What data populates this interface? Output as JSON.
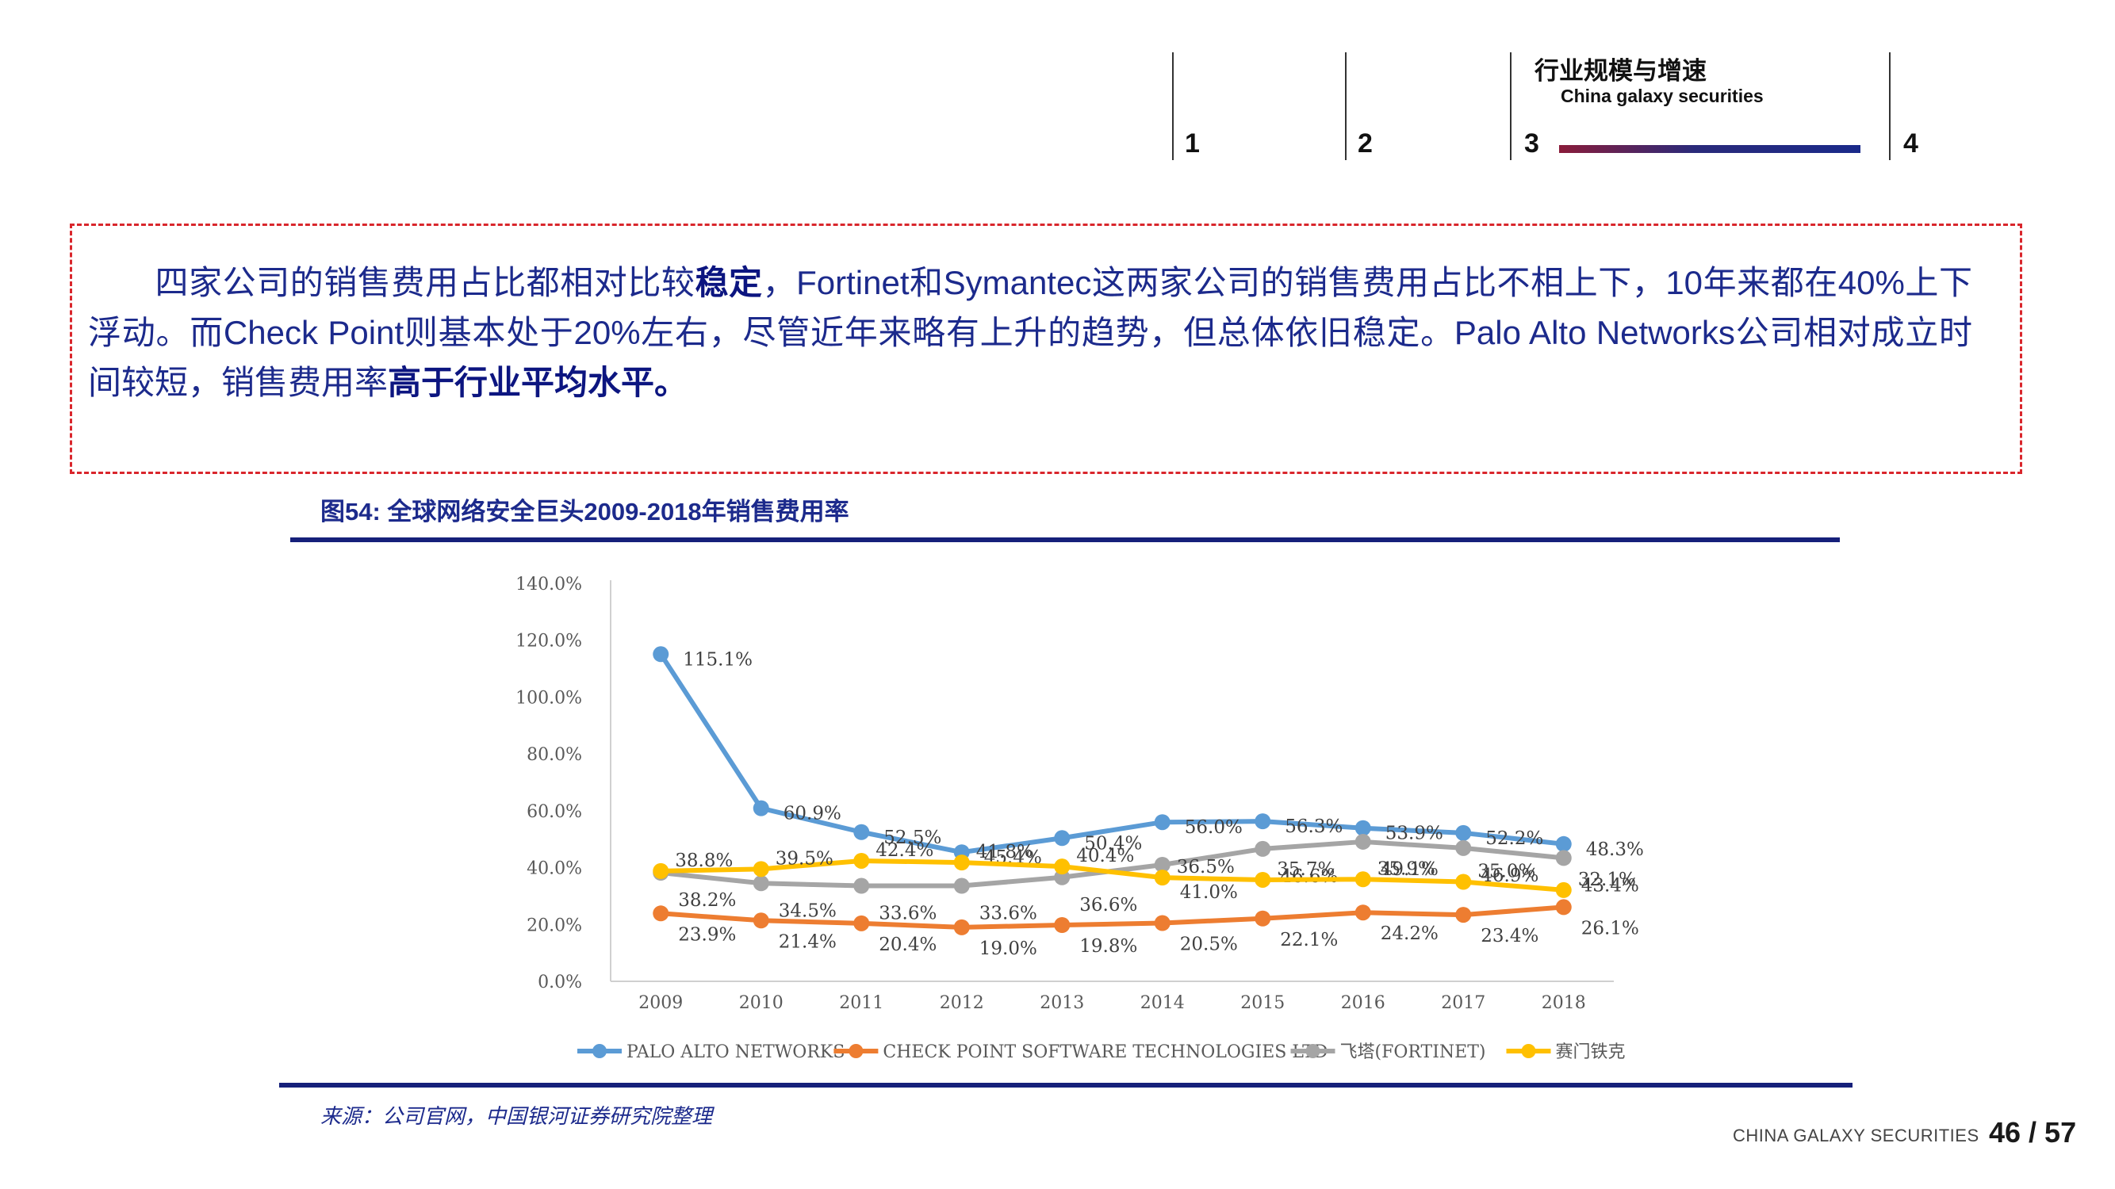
{
  "header": {
    "nav_numbers": [
      "1",
      "2",
      "3",
      "4"
    ],
    "section_title": "行业规模与增速",
    "section_subtitle": "China galaxy securities"
  },
  "summary": {
    "part1": "四家公司的销售费用占比都相对比较",
    "bold1": "稳定",
    "part2": "，Fortinet和Symantec这两家公司的销售费用占比不相上下，10年来都在40%上下浮动。而Check  Point则基本处于20%左右，尽管近年来略有上升的趋势，但总体依旧稳定。Palo  Alto  Networks公司相对成立时间较短，销售费用率",
    "bold2": "高于行业平均水平。"
  },
  "figure_caption": "图54: 全球网络安全巨头2009-2018年销售费用率",
  "source_note": "来源：公司官网，中国银河证券研究院整理",
  "footer": {
    "brand": "CHINA GALAXY SECURITIES",
    "page": "46 / 57"
  },
  "chart_data": {
    "type": "line",
    "title": "",
    "xlabel": "",
    "ylabel": "",
    "categories": [
      "2009",
      "2010",
      "2011",
      "2012",
      "2013",
      "2014",
      "2015",
      "2016",
      "2017",
      "2018"
    ],
    "ylim": [
      0,
      140
    ],
    "yticks": [
      "0.0%",
      "20.0%",
      "40.0%",
      "60.0%",
      "80.0%",
      "100.0%",
      "120.0%",
      "140.0%"
    ],
    "grid": false,
    "legend_position": "bottom",
    "series": [
      {
        "name": "PALO ALTO NETWORKS",
        "color": "#5b9bd5",
        "values": [
          115.1,
          60.9,
          52.5,
          45.4,
          50.4,
          56.0,
          56.3,
          53.9,
          52.2,
          48.3
        ],
        "labels": [
          "115.1%",
          "60.9%",
          "52.5%",
          "45.4%",
          "50.4%",
          "56.0%",
          "56.3%",
          "53.9%",
          "52.2%",
          "48.3%"
        ]
      },
      {
        "name": "CHECK POINT SOFTWARE TECHNOLOGIES LTD",
        "color": "#ed7d31",
        "values": [
          23.9,
          21.4,
          20.4,
          19.0,
          19.8,
          20.5,
          22.1,
          24.2,
          23.4,
          26.1
        ],
        "labels": [
          "23.9%",
          "21.4%",
          "20.4%",
          "19.0%",
          "19.8%",
          "20.5%",
          "22.1%",
          "24.2%",
          "23.4%",
          "26.1%"
        ]
      },
      {
        "name": "飞塔(FORTINET)",
        "color": "#a5a5a5",
        "values": [
          38.2,
          34.5,
          33.6,
          33.6,
          36.6,
          41.0,
          46.6,
          49.1,
          46.9,
          43.4
        ],
        "labels": [
          "38.2%",
          "34.5%",
          "33.6%",
          "33.6%",
          "36.6%",
          "41.0%",
          "46.6%",
          "49.1%",
          "46.9%",
          "43.4%"
        ]
      },
      {
        "name": "赛门铁克",
        "color": "#ffc000",
        "values": [
          38.8,
          39.5,
          42.4,
          41.8,
          40.4,
          36.5,
          35.7,
          35.9,
          35.0,
          32.1
        ],
        "labels": [
          "38.8%",
          "39.5%",
          "42.4%",
          "41.8%",
          "40.4%",
          "36.5%",
          "35.7%",
          "35.9%",
          "35.0%",
          "32.1%"
        ]
      }
    ]
  }
}
